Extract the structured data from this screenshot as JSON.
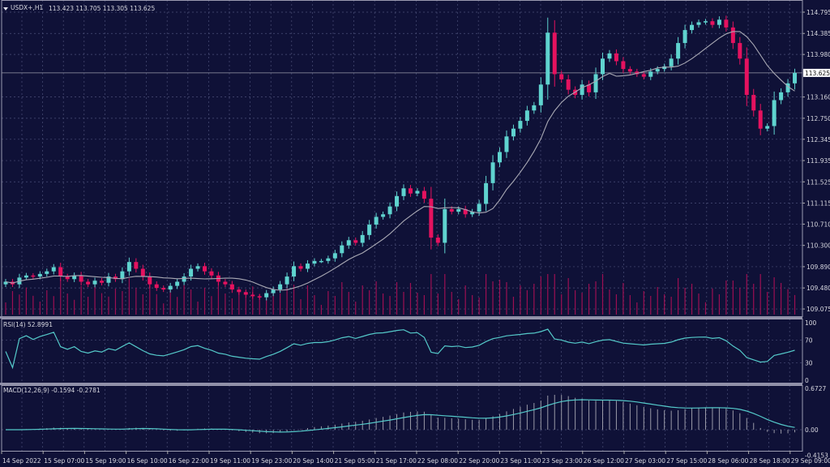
{
  "header": {
    "symbol": "USDX+,H1",
    "ohlc": "113.423 113.705 113.305 113.625"
  },
  "rsi_label": "RSI(14) 52.8991",
  "macd_label": "MACD(12,26,9) -0.1594 -0.2781",
  "current_price_label": "113.625",
  "colors": {
    "background": "#0f1137",
    "grid": "#4b4f78",
    "bull": "#5fd3cf",
    "bear": "#e5125f",
    "volume": "#9c0f52",
    "ma": "#a9a9b4",
    "indicator_line": "#54c9c9",
    "histogram": "#9a9aa8"
  },
  "chart_data": [
    {
      "type": "candlestick",
      "title": "USDX+,H1",
      "price_ticks": [
        "114.795",
        "114.385",
        "113.980",
        "113.160",
        "112.750",
        "112.345",
        "111.935",
        "111.525",
        "111.115",
        "110.710",
        "110.300",
        "109.890",
        "109.480",
        "109.075"
      ],
      "ylim": [
        109.075,
        114.795
      ],
      "time_ticks": [
        "14 Sep 2022",
        "15 Sep 07:00",
        "15 Sep 19:00",
        "16 Sep 10:00",
        "16 Sep 22:00",
        "19 Sep 11:00",
        "19 Sep 23:00",
        "20 Sep 14:00",
        "21 Sep 05:00",
        "21 Sep 17:00",
        "22 Sep 08:00",
        "22 Sep 20:00",
        "23 Sep 11:00",
        "23 Sep 23:00",
        "26 Sep 12:00",
        "27 Sep 03:00",
        "27 Sep 15:00",
        "28 Sep 06:00",
        "28 Sep 18:00",
        "29 Sep 09:00"
      ],
      "last_bar": {
        "open": 113.423,
        "high": 113.705,
        "low": 113.305,
        "close": 113.625
      },
      "closes": [
        109.6,
        109.55,
        109.68,
        109.72,
        109.7,
        109.75,
        109.8,
        109.88,
        109.7,
        109.65,
        109.72,
        109.6,
        109.55,
        109.62,
        109.58,
        109.7,
        109.65,
        109.8,
        109.98,
        109.85,
        109.7,
        109.55,
        109.48,
        109.45,
        109.52,
        109.6,
        109.7,
        109.85,
        109.9,
        109.8,
        109.72,
        109.6,
        109.55,
        109.45,
        109.4,
        109.35,
        109.32,
        109.3,
        109.38,
        109.45,
        109.55,
        109.7,
        109.9,
        109.85,
        109.95,
        110.0,
        110.0,
        110.05,
        110.15,
        110.3,
        110.4,
        110.35,
        110.5,
        110.7,
        110.85,
        110.9,
        111.05,
        111.25,
        111.4,
        111.3,
        111.35,
        111.2,
        110.45,
        110.35,
        111.0,
        110.95,
        111.0,
        110.9,
        110.95,
        111.1,
        111.5,
        111.9,
        112.1,
        112.4,
        112.55,
        112.7,
        112.9,
        113.0,
        113.4,
        114.4,
        113.6,
        113.5,
        113.3,
        113.2,
        113.4,
        113.25,
        113.6,
        113.9,
        114.0,
        113.85,
        113.7,
        113.65,
        113.6,
        113.55,
        113.65,
        113.7,
        113.75,
        113.9,
        114.2,
        114.45,
        114.55,
        114.6,
        114.62,
        114.55,
        114.65,
        114.5,
        114.2,
        113.9,
        113.2,
        112.9,
        112.55,
        112.6,
        113.1,
        113.25,
        113.423
      ],
      "moving_average": true
    },
    {
      "type": "line",
      "title": "RSI(14)",
      "period": 14,
      "ticks": [
        "100",
        "70",
        "30",
        "0"
      ],
      "ylim": [
        0,
        100
      ]
    },
    {
      "type": "bar+line",
      "title": "MACD(12,26,9)",
      "fast": 12,
      "slow": 26,
      "signal": 9,
      "ticks": [
        "0.6727",
        "0.00",
        "-0.4153"
      ],
      "ylim": [
        -0.4153,
        0.6727
      ]
    }
  ]
}
